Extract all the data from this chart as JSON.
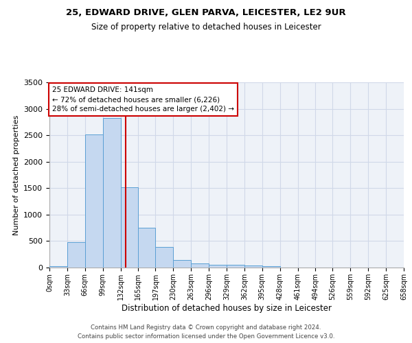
{
  "title_line1": "25, EDWARD DRIVE, GLEN PARVA, LEICESTER, LE2 9UR",
  "title_line2": "Size of property relative to detached houses in Leicester",
  "xlabel": "Distribution of detached houses by size in Leicester",
  "ylabel": "Number of detached properties",
  "bin_labels": [
    "0sqm",
    "33sqm",
    "66sqm",
    "99sqm",
    "132sqm",
    "165sqm",
    "197sqm",
    "230sqm",
    "263sqm",
    "296sqm",
    "329sqm",
    "362sqm",
    "395sqm",
    "428sqm",
    "461sqm",
    "494sqm",
    "526sqm",
    "559sqm",
    "592sqm",
    "625sqm",
    "658sqm"
  ],
  "bin_edges": [
    0,
    33,
    66,
    99,
    132,
    165,
    197,
    230,
    263,
    296,
    329,
    362,
    395,
    428,
    461,
    494,
    526,
    559,
    592,
    625,
    658
  ],
  "bar_heights": [
    25,
    480,
    2510,
    2820,
    1520,
    750,
    390,
    140,
    75,
    55,
    55,
    35,
    20,
    5,
    2,
    1,
    1,
    0,
    0,
    0
  ],
  "bar_color": "#c5d8f0",
  "bar_edge_color": "#5a9fd4",
  "grid_color": "#d0d8e8",
  "background_color": "#eef2f8",
  "vline_x": 141,
  "vline_color": "#cc0000",
  "annotation_text": "25 EDWARD DRIVE: 141sqm\n← 72% of detached houses are smaller (6,226)\n28% of semi-detached houses are larger (2,402) →",
  "annotation_box_color": "#cc0000",
  "annotation_bg": "#ffffff",
  "ylim": [
    0,
    3500
  ],
  "yticks": [
    0,
    500,
    1000,
    1500,
    2000,
    2500,
    3000,
    3500
  ],
  "footer_line1": "Contains HM Land Registry data © Crown copyright and database right 2024.",
  "footer_line2": "Contains public sector information licensed under the Open Government Licence v3.0."
}
